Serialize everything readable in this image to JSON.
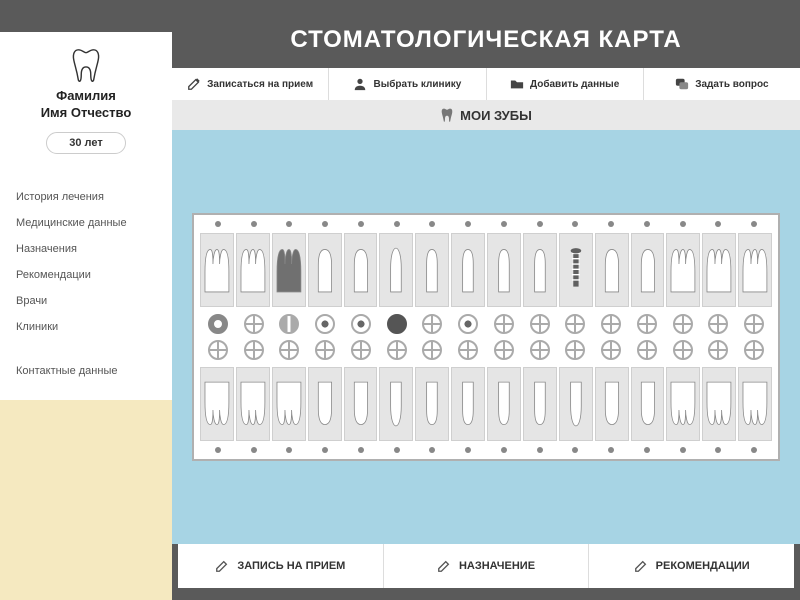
{
  "profile": {
    "name_line1": "Фамилия",
    "name_line2": "Имя Отчество",
    "age": "30 лет"
  },
  "menu": {
    "items": [
      "История лечения",
      "Медицинские данные",
      "Назначения",
      "Рекомендации",
      "Врачи",
      "Клиники"
    ],
    "contact": "Контактные данные"
  },
  "page": {
    "title": "СТОМАТОЛОГИЧЕСКАЯ КАРТА",
    "subtitle": "МОИ ЗУБЫ"
  },
  "toolbar": {
    "items": [
      {
        "icon": "pencil",
        "label": "Записаться на прием"
      },
      {
        "icon": "user",
        "label": "Выбрать клинику"
      },
      {
        "icon": "folder",
        "label": "Добавить данные"
      },
      {
        "icon": "chat",
        "label": "Задать вопрос"
      }
    ]
  },
  "actions": {
    "items": [
      "ЗАПИСЬ НА ПРИЕМ",
      "НАЗНАЧЕНИЕ",
      "РЕКОМЕНДАЦИИ"
    ]
  },
  "chart": {
    "tooth_count_per_row": 16,
    "upper_teeth": [
      {
        "type": "molar-root",
        "fill": "#ffffff"
      },
      {
        "type": "molar-root",
        "fill": "#ffffff"
      },
      {
        "type": "molar-root",
        "fill": "#707070"
      },
      {
        "type": "premolar",
        "fill": "#ffffff"
      },
      {
        "type": "premolar",
        "fill": "#ffffff"
      },
      {
        "type": "canine",
        "fill": "#ffffff"
      },
      {
        "type": "incisor",
        "fill": "#ffffff"
      },
      {
        "type": "incisor",
        "fill": "#ffffff"
      },
      {
        "type": "incisor",
        "fill": "#ffffff"
      },
      {
        "type": "incisor",
        "fill": "#ffffff"
      },
      {
        "type": "implant",
        "fill": "#606060"
      },
      {
        "type": "premolar",
        "fill": "#ffffff"
      },
      {
        "type": "premolar",
        "fill": "#ffffff"
      },
      {
        "type": "molar-root",
        "fill": "#ffffff"
      },
      {
        "type": "molar-root",
        "fill": "#ffffff"
      },
      {
        "type": "molar-root",
        "fill": "#ffffff"
      }
    ],
    "lower_teeth": [
      {
        "type": "molar-crown",
        "fill": "#ffffff"
      },
      {
        "type": "molar-crown",
        "fill": "#ffffff"
      },
      {
        "type": "molar-crown",
        "fill": "#ffffff"
      },
      {
        "type": "premolar-d",
        "fill": "#ffffff"
      },
      {
        "type": "premolar-d",
        "fill": "#ffffff"
      },
      {
        "type": "canine-d",
        "fill": "#ffffff"
      },
      {
        "type": "incisor-d",
        "fill": "#ffffff"
      },
      {
        "type": "incisor-d",
        "fill": "#ffffff"
      },
      {
        "type": "incisor-d",
        "fill": "#ffffff"
      },
      {
        "type": "incisor-d",
        "fill": "#ffffff"
      },
      {
        "type": "canine-d",
        "fill": "#ffffff"
      },
      {
        "type": "premolar-d",
        "fill": "#ffffff"
      },
      {
        "type": "premolar-d",
        "fill": "#ffffff"
      },
      {
        "type": "molar-crown",
        "fill": "#ffffff"
      },
      {
        "type": "molar-crown",
        "fill": "#ffffff"
      },
      {
        "type": "molar-crown",
        "fill": "#ffffff"
      }
    ],
    "upper_discs": [
      "donut",
      "cross",
      "split",
      "eye",
      "eye",
      "fill",
      "cross",
      "eye",
      "cross",
      "cross",
      "cross",
      "cross",
      "cross",
      "cross",
      "cross",
      "cross"
    ],
    "lower_discs": [
      "cross",
      "cross",
      "cross",
      "cross",
      "cross",
      "cross",
      "cross",
      "cross",
      "cross",
      "cross",
      "cross",
      "cross",
      "cross",
      "cross",
      "cross",
      "cross"
    ],
    "colors": {
      "panel_bg": "#a7d4e4",
      "card_border": "#b0b0b0",
      "cell_bg": "#e5e5e5",
      "tooth_stroke": "#888888",
      "dot_color": "#888888"
    }
  }
}
